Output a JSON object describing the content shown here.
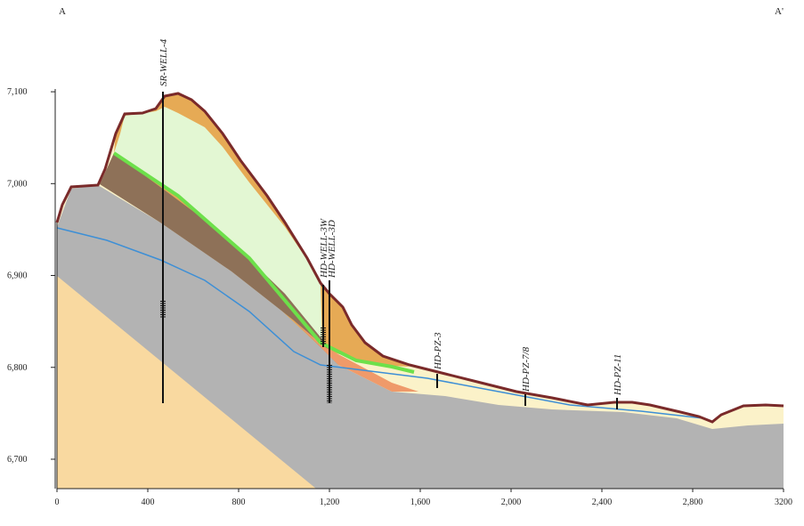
{
  "section_start": "A",
  "section_end": "A'",
  "xlim": [
    0,
    3200
  ],
  "ylim": [
    6668,
    7103
  ],
  "xticks": [
    0,
    400,
    800,
    {
      "value": 1200,
      "label": "1,200"
    },
    {
      "value": 1600,
      "label": "1,600"
    },
    {
      "value": 2000,
      "label": "2,000"
    },
    {
      "value": 2400,
      "label": "2,400"
    },
    {
      "value": 2800,
      "label": "2,800"
    },
    3200
  ],
  "yticks": [
    {
      "value": 6700,
      "label": "6,700"
    },
    {
      "value": 6800,
      "label": "6,800"
    },
    {
      "value": 6900,
      "label": "6,900"
    },
    {
      "value": 7000,
      "label": "7,000"
    },
    {
      "value": 7100,
      "label": "7,100"
    }
  ],
  "wells": [
    "SR-WELL-4",
    "HD-WELL-3W",
    "HD-WELL-3D",
    "HD-PZ-3",
    "HD-PZ-7/8",
    "HD-PZ-11"
  ]
}
